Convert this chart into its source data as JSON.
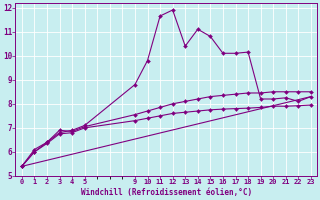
{
  "xlabel": "Windchill (Refroidissement éolien,°C)",
  "background_color": "#c8eef0",
  "grid_color": "#ffffff",
  "line_color": "#800080",
  "xlim": [
    -0.5,
    23.5
  ],
  "ylim": [
    5,
    12.2
  ],
  "yticks": [
    5,
    6,
    7,
    8,
    9,
    10,
    11,
    12
  ],
  "series": [
    {
      "x": [
        0,
        1,
        2,
        3,
        4,
        5,
        9,
        10,
        11,
        12,
        13,
        14,
        15,
        16,
        17,
        18,
        19,
        20,
        21,
        22,
        23
      ],
      "y": [
        5.4,
        6.0,
        6.4,
        6.8,
        6.9,
        7.1,
        8.8,
        9.8,
        11.65,
        11.9,
        10.4,
        11.1,
        10.8,
        10.1,
        10.1,
        10.15,
        8.2,
        8.2,
        8.25,
        8.1,
        8.3
      ],
      "marker": "D",
      "markersize": 2.0,
      "linewidth": 0.8
    },
    {
      "x": [
        0,
        1,
        2,
        3,
        4,
        5,
        9,
        10,
        11,
        12,
        13,
        14,
        15,
        16,
        17,
        18,
        19,
        20,
        21,
        22,
        23
      ],
      "y": [
        5.4,
        6.1,
        6.4,
        6.9,
        6.85,
        7.05,
        7.55,
        7.7,
        7.85,
        8.0,
        8.1,
        8.2,
        8.3,
        8.35,
        8.4,
        8.45,
        8.45,
        8.5,
        8.5,
        8.5,
        8.5
      ],
      "marker": "D",
      "markersize": 2.0,
      "linewidth": 0.8
    },
    {
      "x": [
        0,
        1,
        2,
        3,
        4,
        5,
        9,
        10,
        11,
        12,
        13,
        14,
        15,
        16,
        17,
        18,
        19,
        20,
        21,
        22,
        23
      ],
      "y": [
        5.4,
        6.0,
        6.35,
        6.75,
        6.8,
        7.0,
        7.3,
        7.4,
        7.5,
        7.6,
        7.65,
        7.7,
        7.75,
        7.78,
        7.8,
        7.82,
        7.85,
        7.9,
        7.9,
        7.92,
        7.95
      ],
      "marker": "D",
      "markersize": 2.0,
      "linewidth": 0.8
    },
    {
      "x": [
        0,
        23
      ],
      "y": [
        5.4,
        8.3
      ],
      "marker": null,
      "markersize": 0,
      "linewidth": 0.8
    }
  ],
  "xtick_positions": [
    0,
    1,
    2,
    3,
    4,
    5,
    9,
    10,
    11,
    12,
    13,
    14,
    15,
    16,
    17,
    18,
    19,
    20,
    21,
    22,
    23
  ],
  "xtick_labels": [
    "0",
    "1",
    "2",
    "3",
    "4",
    "5",
    "9",
    "10",
    "11",
    "12",
    "13",
    "14",
    "15",
    "16",
    "17",
    "18",
    "19",
    "20",
    "21",
    "22",
    "23"
  ]
}
